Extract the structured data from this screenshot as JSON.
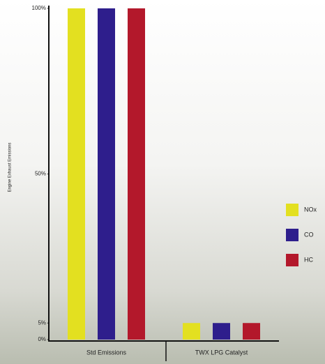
{
  "chart_data": {
    "type": "bar",
    "y_label": "Engine Exhaust Emissions",
    "categories": [
      "Std Emissions",
      "TWX LPG Catalyst"
    ],
    "series": [
      {
        "name": "NOx",
        "color": "#e3e020",
        "values": [
          100,
          5
        ]
      },
      {
        "name": "CO",
        "color": "#2e1e8c",
        "values": [
          100,
          5
        ]
      },
      {
        "name": "HC",
        "color": "#b3182b",
        "values": [
          100,
          5
        ]
      }
    ],
    "ylim": [
      0,
      100
    ],
    "yticks": [
      {
        "value": 0,
        "label": "0%"
      },
      {
        "value": 5,
        "label": "5%"
      },
      {
        "value": 50,
        "label": "50%"
      },
      {
        "value": 100,
        "label": "100%"
      }
    ],
    "legend": "right"
  }
}
